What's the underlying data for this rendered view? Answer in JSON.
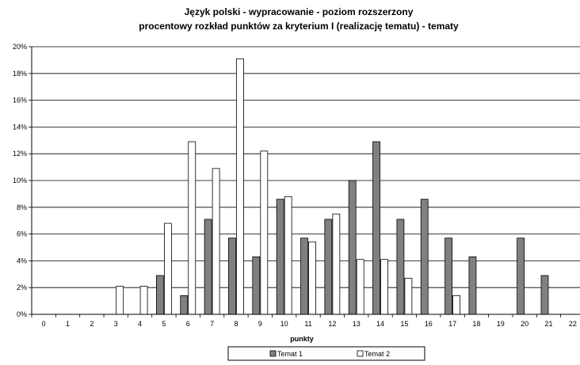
{
  "chart_data": {
    "type": "bar",
    "title": "Język polski - wypracowanie - poziom rozszerzony",
    "subtitle": "procentowy rozkład punktów za kryterium I (realizację tematu) - tematy",
    "xlabel": "punkty",
    "ylabel": "",
    "categories": [
      "0",
      "1",
      "2",
      "3",
      "4",
      "5",
      "6",
      "7",
      "8",
      "9",
      "10",
      "11",
      "12",
      "13",
      "14",
      "15",
      "16",
      "17",
      "18",
      "19",
      "20",
      "21",
      "22"
    ],
    "y_ticks": [
      "0%",
      "2%",
      "4%",
      "6%",
      "8%",
      "10%",
      "12%",
      "14%",
      "16%",
      "18%",
      "20%"
    ],
    "ylim": [
      0,
      20
    ],
    "grid": "horizontal",
    "legend_position": "bottom",
    "series": [
      {
        "name": "Temat 1",
        "color": "#808080",
        "values": [
          0,
          0,
          0,
          0,
          0,
          2.9,
          1.4,
          7.1,
          5.7,
          4.3,
          8.6,
          5.7,
          7.1,
          10.0,
          12.9,
          7.1,
          8.6,
          5.7,
          4.3,
          0,
          5.7,
          2.9,
          0
        ]
      },
      {
        "name": "Temat 2",
        "color": "#ffffff",
        "values": [
          0,
          0,
          0,
          2.1,
          2.1,
          6.8,
          12.9,
          10.9,
          19.1,
          12.2,
          8.8,
          5.4,
          7.5,
          4.1,
          4.1,
          2.7,
          0,
          1.4,
          0,
          0,
          0,
          0,
          0
        ]
      }
    ]
  }
}
